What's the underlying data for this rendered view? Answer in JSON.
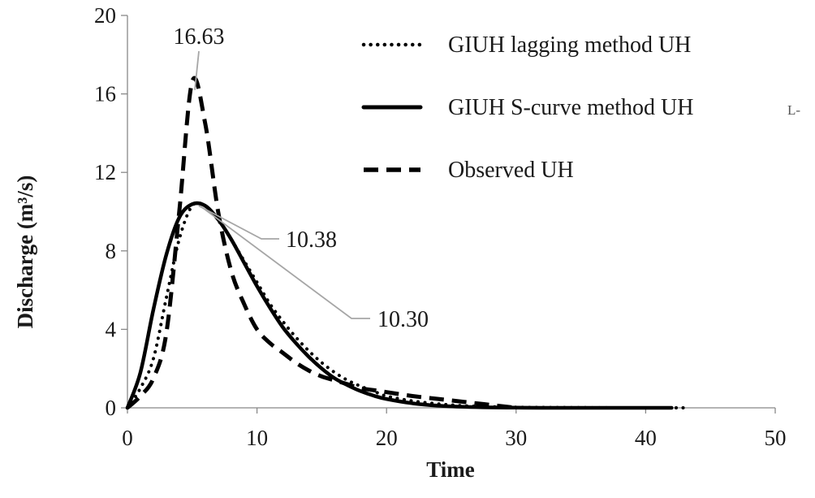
{
  "chart_data": {
    "type": "line",
    "xlabel": "Time",
    "ylabel": "Discharge (m³/s)",
    "xlim": [
      0,
      50
    ],
    "ylim": [
      0,
      20
    ],
    "xticks": [
      0,
      10,
      20,
      30,
      40,
      50
    ],
    "yticks": [
      0,
      4,
      8,
      12,
      16,
      20
    ],
    "grid": false,
    "legend_position": "top-right",
    "series": [
      {
        "name": "GIUH lagging method UH",
        "style": "dotted",
        "color": "#000000",
        "x": [
          0,
          1,
          2,
          3,
          4,
          5,
          6,
          7,
          8,
          9,
          10,
          11,
          12,
          13,
          14,
          15,
          16,
          17,
          18,
          19,
          20,
          22,
          24,
          26,
          28,
          30,
          32,
          35,
          38,
          40,
          43
        ],
        "y": [
          0,
          1.0,
          2.5,
          5.6,
          8.6,
          10.3,
          10.3,
          9.6,
          8.6,
          7.5,
          6.4,
          5.3,
          4.4,
          3.6,
          2.9,
          2.3,
          1.8,
          1.4,
          1.1,
          0.85,
          0.6,
          0.35,
          0.2,
          0.1,
          0.06,
          0.03,
          0.02,
          0.01,
          0.0,
          0.0,
          0.0
        ]
      },
      {
        "name": "GIUH S-curve method UH",
        "style": "solid",
        "color": "#000000",
        "x": [
          0,
          1,
          2,
          3,
          4,
          5,
          6,
          7,
          8,
          9,
          10,
          11,
          12,
          13,
          14,
          15,
          16,
          17,
          18,
          19,
          20,
          22,
          24,
          26,
          28,
          30,
          32,
          35,
          38,
          40,
          42
        ],
        "y": [
          0,
          1.8,
          5.0,
          7.8,
          9.7,
          10.38,
          10.3,
          9.6,
          8.6,
          7.4,
          6.2,
          5.1,
          4.1,
          3.3,
          2.6,
          2.0,
          1.5,
          1.15,
          0.85,
          0.62,
          0.45,
          0.23,
          0.11,
          0.05,
          0.02,
          0.01,
          0.0,
          0.0,
          0.0,
          0.0,
          0.0
        ]
      },
      {
        "name": "Observed UH",
        "style": "dashed",
        "color": "#000000",
        "x": [
          0,
          1,
          2,
          3,
          4,
          5,
          6,
          7,
          8,
          9,
          10,
          11,
          12,
          13,
          14,
          15,
          16,
          17,
          18,
          19,
          20,
          22,
          24,
          26,
          28,
          30
        ],
        "y": [
          0,
          0.6,
          1.5,
          3.8,
          10.0,
          16.63,
          14.5,
          10.0,
          7.0,
          5.3,
          4.0,
          3.3,
          2.8,
          2.3,
          1.9,
          1.6,
          1.4,
          1.2,
          1.0,
          0.9,
          0.8,
          0.6,
          0.45,
          0.3,
          0.15,
          0.0
        ]
      }
    ],
    "annotations": [
      {
        "label": "16.63",
        "x": 5,
        "y": 16.63
      },
      {
        "label": "10.38",
        "x": 5,
        "y": 10.38
      },
      {
        "label": "10.30",
        "x": 5,
        "y": 10.3
      }
    ],
    "stray_mark": "L-"
  }
}
